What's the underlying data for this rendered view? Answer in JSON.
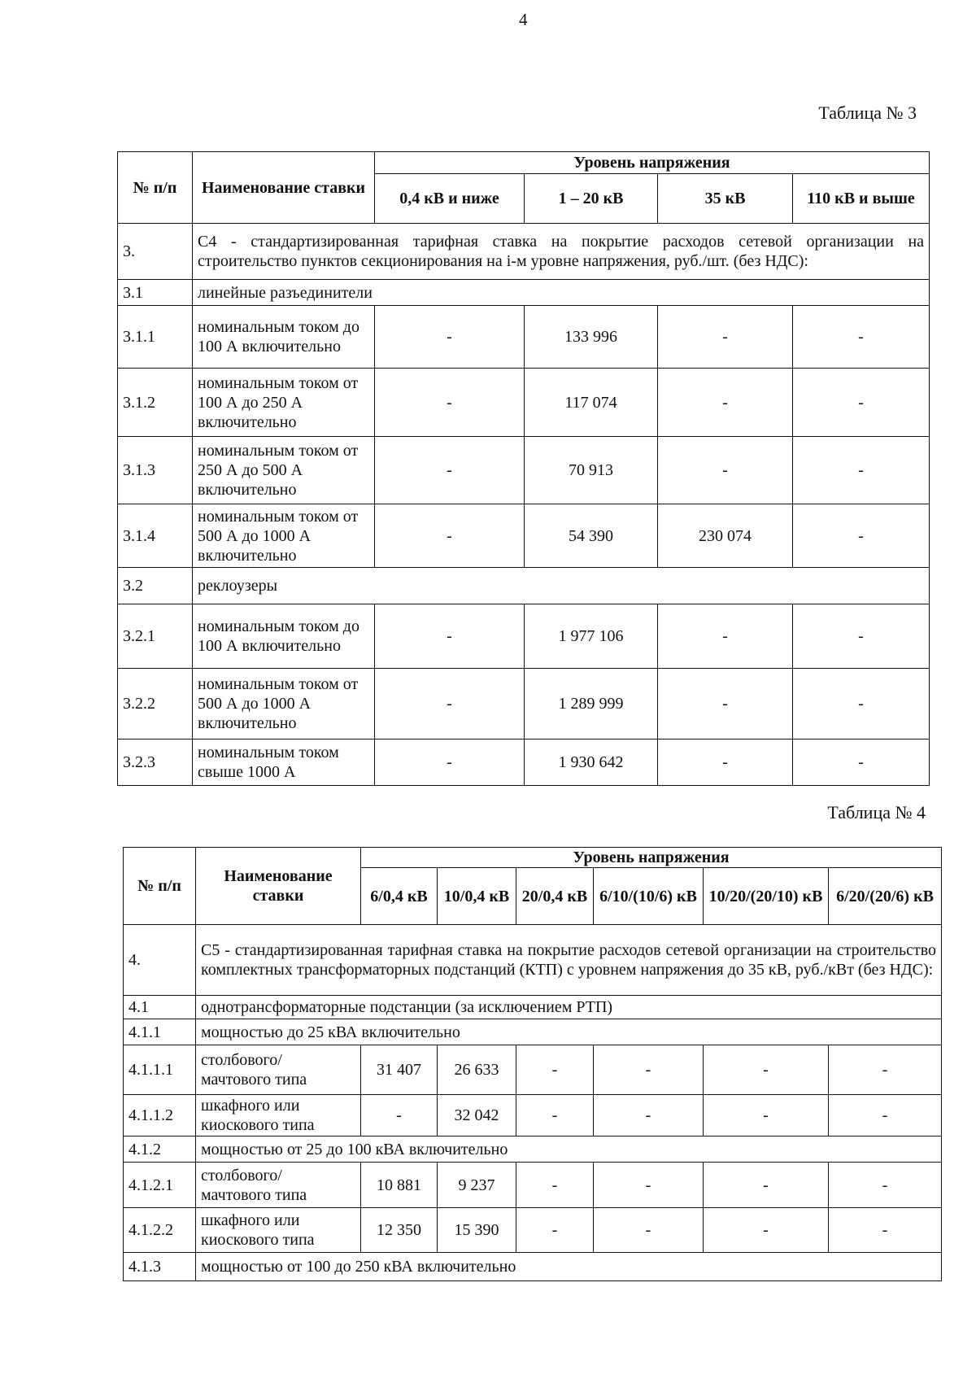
{
  "page_number": "4",
  "table3": {
    "caption": "Таблица № 3",
    "header": {
      "num": "№ п/п",
      "name": "Наименование ставки",
      "level": "Уровень напряжения",
      "cols": [
        "0,4 кВ и ниже",
        "1 – 20 кВ",
        "35 кВ",
        "110 кВ и выше"
      ]
    },
    "rows": [
      {
        "num": "3.",
        "text": "С4 - стандартизированная тарифная ставка на покрытие расходов сетевой организации на строительство пунктов секционирования на i-м уровне напряжения, руб./шт. (без НДС):",
        "span": true
      },
      {
        "num": "3.1",
        "text": "линейные разъединители",
        "span": true
      },
      {
        "num": "3.1.1",
        "text": "номинальным током до 100 А включительно",
        "values": [
          "-",
          "133 996",
          "-",
          "-"
        ]
      },
      {
        "num": "3.1.2",
        "text": "номинальным током от 100 А до 250 А включительно",
        "values": [
          "-",
          "117 074",
          "-",
          "-"
        ]
      },
      {
        "num": "3.1.3",
        "text": "номинальным током от 250 А до 500 А включительно",
        "values": [
          "-",
          "70 913",
          "-",
          "-"
        ]
      },
      {
        "num": "3.1.4",
        "text": "номинальным током от 500 А до 1000 А включительно",
        "values": [
          "-",
          "54 390",
          "230 074",
          "-"
        ]
      },
      {
        "num": "3.2",
        "text": "реклоузеры",
        "span": true
      },
      {
        "num": "3.2.1",
        "text": "номинальным током до 100 А включительно",
        "values": [
          "-",
          "1 977 106",
          "-",
          "-"
        ]
      },
      {
        "num": "3.2.2",
        "text": "номинальным током от 500 А до 1000 А включительно",
        "values": [
          "-",
          "1 289 999",
          "-",
          "-"
        ]
      },
      {
        "num": "3.2.3",
        "text": "номинальным током свыше 1000 А",
        "values": [
          "-",
          "1 930 642",
          "-",
          "-"
        ]
      }
    ]
  },
  "table4": {
    "caption": "Таблица № 4",
    "header": {
      "num": "№ п/п",
      "name": "Наименование ставки",
      "level": "Уровень напряжения",
      "cols": [
        "6/0,4 кВ",
        "10/0,4 кВ",
        "20/0,4 кВ",
        "6/10/(10/6) кВ",
        "10/20/(20/10) кВ",
        "6/20/(20/6) кВ"
      ]
    },
    "rows": [
      {
        "num": "4.",
        "text": "С5 - стандартизированная тарифная ставка на покрытие расходов сетевой организации на строительство комплектных трансформаторных подстанций (КТП) с уровнем напряжения до 35 кВ, руб./кВт (без НДС):",
        "span": true
      },
      {
        "num": "4.1",
        "text": "однотрансформаторные подстанции (за исключением РТП)",
        "span": true
      },
      {
        "num": "4.1.1",
        "text": "мощностью до 25 кВА включительно",
        "span": true
      },
      {
        "num": "4.1.1.1",
        "text": "столбового/ мачтового типа",
        "values": [
          "31 407",
          "26 633",
          "-",
          "-",
          "-",
          "-"
        ]
      },
      {
        "num": "4.1.1.2",
        "text": "шкафного или киоскового типа",
        "values": [
          "-",
          "32 042",
          "-",
          "-",
          "-",
          "-"
        ]
      },
      {
        "num": "4.1.2",
        "text": "мощностью от 25 до 100 кВА включительно",
        "span": true
      },
      {
        "num": "4.1.2.1",
        "text": "столбового/ мачтового типа",
        "values": [
          "10 881",
          "9 237",
          "-",
          "-",
          "-",
          "-"
        ]
      },
      {
        "num": "4.1.2.2",
        "text": "шкафного или киоскового типа",
        "values": [
          "12 350",
          "15 390",
          "-",
          "-",
          "-",
          "-"
        ]
      },
      {
        "num": "4.1.3",
        "text": "мощностью от 100 до 250 кВА включительно",
        "span": true
      }
    ]
  }
}
